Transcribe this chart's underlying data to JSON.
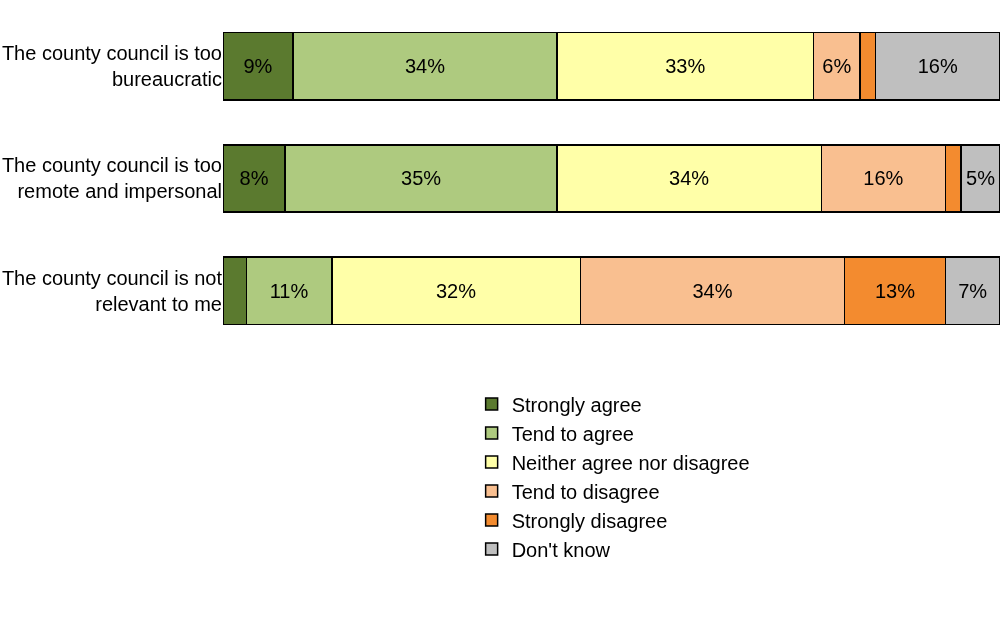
{
  "chart_data": {
    "type": "bar",
    "orientation": "horizontal",
    "stacked": true,
    "legend": "bottom",
    "tick_labels": "y",
    "categories": [
      "The county council is too bureaucratic",
      "The county council is too remote and impersonal",
      "The county council is not relevant to me"
    ],
    "series": [
      {
        "name": "Strongly agree",
        "color": "#5b7a2f",
        "values": [
          9,
          8,
          3
        ],
        "value_labels": [
          "9%",
          "8%",
          null
        ]
      },
      {
        "name": "Tend to agree",
        "color": "#aeca7f",
        "values": [
          34,
          35,
          11
        ],
        "value_labels": [
          "34%",
          "35%",
          "11%"
        ]
      },
      {
        "name": "Neither agree nor disagree",
        "color": "#ffffa8",
        "values": [
          33,
          34,
          32
        ],
        "value_labels": [
          "33%",
          "34%",
          "32%"
        ]
      },
      {
        "name": "Tend to disagree",
        "color": "#f9bf90",
        "values": [
          6,
          16,
          34
        ],
        "value_labels": [
          "6%",
          "16%",
          "34%"
        ]
      },
      {
        "name": "Strongly disagree",
        "color": "#f38b2f",
        "values": [
          2,
          2,
          13
        ],
        "value_labels": [
          null,
          null,
          "13%"
        ]
      },
      {
        "name": "Don't know",
        "color": "#bfbfbf",
        "values": [
          16,
          5,
          7
        ],
        "value_labels": [
          "16%",
          "5%",
          "7%"
        ]
      }
    ]
  }
}
